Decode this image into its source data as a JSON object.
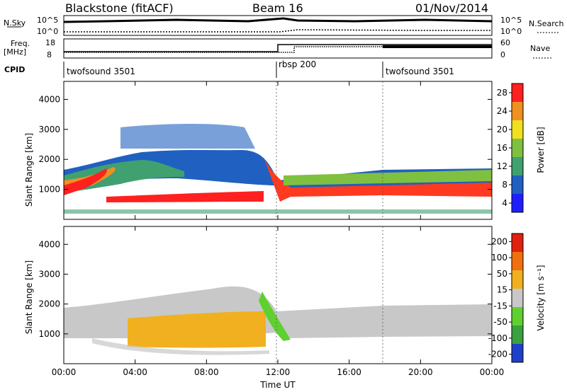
{
  "header": {
    "radar": "Blackstone (fitACF)",
    "beam": "Beam 16",
    "date": "01/Nov/2014"
  },
  "strips": {
    "nsky_label": "N.Sky",
    "nsky_ticks": [
      "10^5",
      "10^0"
    ],
    "nsearch_label": "N.Search",
    "nsearch_ticks": [
      "10^5",
      "10^0"
    ],
    "freq_label_1": "Freq.",
    "freq_label_2": "[MHz]",
    "freq_ticks": [
      "18",
      "8"
    ],
    "nave_label": "Nave",
    "nave_ticks": [
      "60",
      "0"
    ],
    "cpid_label": "CPID",
    "cpid_segments": [
      "twofsound 3501",
      "rbsp 200",
      "twofsound 3501"
    ]
  },
  "chart_data": [
    {
      "type": "heatmap",
      "title": "",
      "ylabel": "Slant Range [km]",
      "yticks": [
        "1000",
        "2000",
        "3000",
        "4000"
      ],
      "xticks": [
        "00:00",
        "04:00",
        "08:00",
        "12:00",
        "16:00",
        "20:00",
        "00:00"
      ],
      "colorbar_label": "Power [dB]",
      "colorbar_ticks": [
        "4",
        "8",
        "12",
        "16",
        "20",
        "24",
        "28"
      ],
      "colorbar_colors": [
        "#1e1eff",
        "#2060c0",
        "#40a070",
        "#80c040",
        "#f0e020",
        "#f09020",
        "#ff2020"
      ]
    },
    {
      "type": "heatmap",
      "title": "",
      "ylabel": "Slant Range [km]",
      "xlabel": "Time UT",
      "yticks": [
        "1000",
        "2000",
        "3000",
        "4000"
      ],
      "xticks": [
        "00:00",
        "04:00",
        "08:00",
        "12:00",
        "16:00",
        "20:00",
        "00:00"
      ],
      "colorbar_label": "Velocity [m s⁻¹]",
      "colorbar_ticks": [
        "200",
        "100",
        "50",
        "15",
        "-15",
        "-50",
        "-100",
        "-200"
      ],
      "colorbar_colors": [
        "#1e40c8",
        "#3aa040",
        "#60d030",
        "#c8c8c8",
        "#f0b020",
        "#f07010",
        "#e02010"
      ]
    }
  ]
}
